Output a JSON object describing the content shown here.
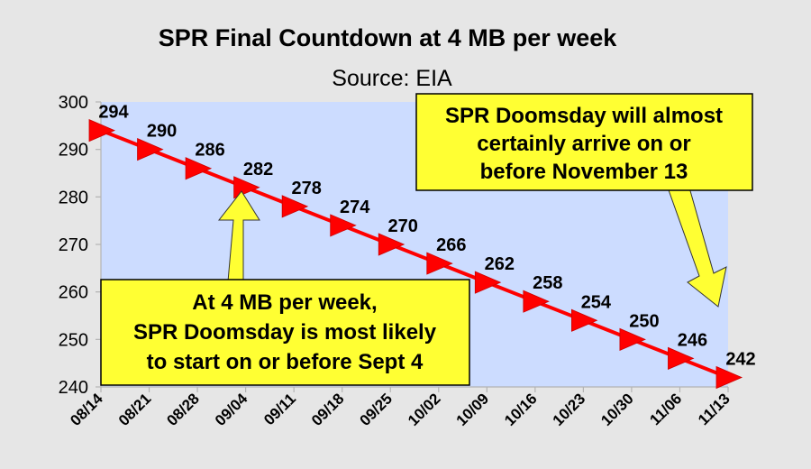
{
  "chart_data": {
    "type": "line",
    "title": "SPR Final Countdown at 4 MB per week",
    "subtitle": "Source: EIA",
    "xlabel": "",
    "ylabel": "",
    "ylim": [
      240,
      300
    ],
    "yticks": [
      240,
      250,
      260,
      270,
      280,
      290,
      300
    ],
    "grid": false,
    "legend": "none",
    "categories": [
      "08/14",
      "08/21",
      "08/28",
      "09/04",
      "09/11",
      "09/18",
      "09/25",
      "10/02",
      "10/09",
      "10/16",
      "10/23",
      "10/30",
      "11/06",
      "11/13"
    ],
    "series": [
      {
        "values": [
          294,
          290,
          286,
          282,
          278,
          274,
          270,
          266,
          262,
          258,
          254,
          250,
          246,
          242
        ]
      }
    ],
    "annotations": [
      {
        "lines": [
          "SPR Doomsday will almost",
          "certainly arrive on or",
          "before November 13"
        ]
      },
      {
        "lines": [
          "At 4 MB per week,",
          "SPR Doomsday is most likely",
          "to start on or before Sept 4"
        ]
      }
    ]
  },
  "colors": {
    "page_background": "#e6e6e6",
    "plot_background": "#ccdcff",
    "line": "#ff0000",
    "marker": "#ff0000",
    "annotation_fill": "#ffff33",
    "arrow_fill": "#ffff33"
  }
}
